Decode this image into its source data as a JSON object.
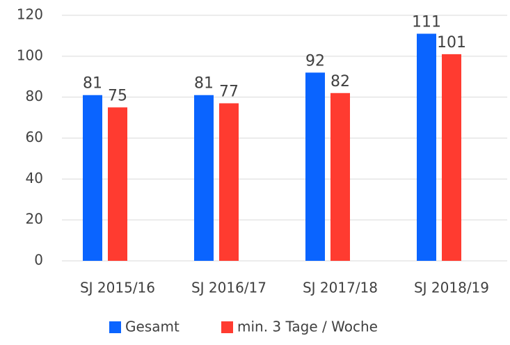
{
  "chart_data": {
    "type": "bar",
    "categories": [
      "SJ 2015/16",
      "SJ 2016/17",
      "SJ 2017/18",
      "SJ 2018/19"
    ],
    "series": [
      {
        "name": "Gesamt",
        "color": "#0a64ff",
        "values": [
          81,
          81,
          92,
          111
        ]
      },
      {
        "name": "min. 3 Tage / Woche",
        "color": "#ff3b30",
        "values": [
          75,
          77,
          82,
          101
        ]
      }
    ],
    "ylim": [
      0,
      120
    ],
    "yticks": [
      0,
      20,
      40,
      60,
      80,
      100,
      120
    ],
    "grid": true,
    "legend": "bottom"
  }
}
